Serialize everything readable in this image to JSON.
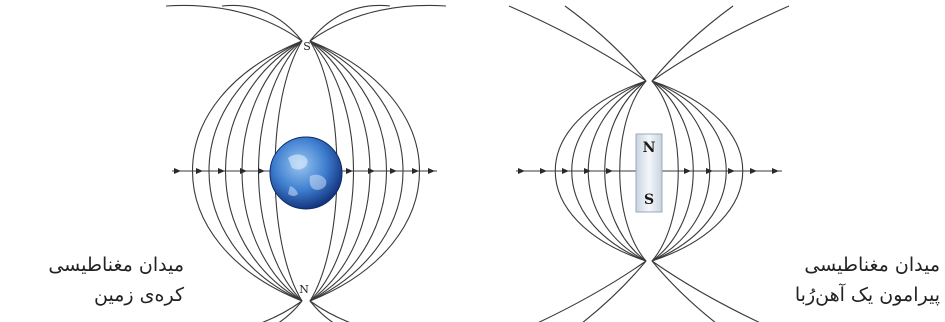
{
  "earth_diagram": {
    "top_pole_label": "S",
    "bottom_pole_label": "N",
    "caption_line1": "میدان مغناطیسی",
    "caption_line2": "کره‌ی زمین",
    "globe_colors": {
      "light": "#9cc6f0",
      "mid": "#3f7fd0",
      "dark": "#0f2f78"
    }
  },
  "magnet_diagram": {
    "north_label": "N",
    "south_label": "S",
    "caption_line1": "میدان مغناطیسی",
    "caption_line2": "پیرامون یک آهن‌رُبا",
    "bar_color": "#dfe7f0"
  }
}
